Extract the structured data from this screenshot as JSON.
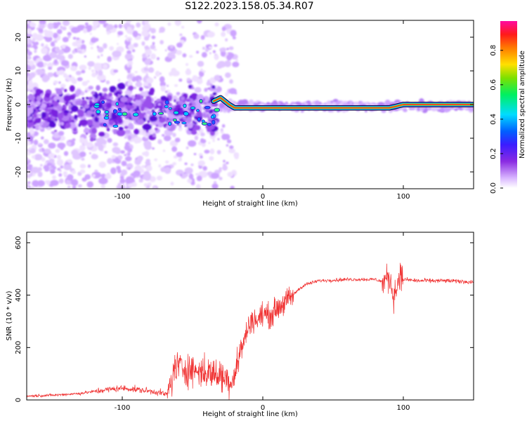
{
  "title": "S122.2023.158.05.34.R07",
  "colors": {
    "snr_line": "#f03030",
    "axis": "#000000",
    "track": "#000000"
  },
  "chart_data": [
    {
      "type": "heatmap",
      "xlabel": "Height of straight line (km)",
      "ylabel": "Frequency (Hz)",
      "xlim": [
        -168,
        150
      ],
      "ylim": [
        -25,
        25
      ],
      "x_ticks": [
        -100,
        0,
        100
      ],
      "y_ticks": [
        -20,
        -10,
        0,
        10,
        20
      ],
      "colorbar": {
        "label": "Normalized spectral amplitude",
        "range": [
          0,
          0.97
        ],
        "ticks": [
          "0.0",
          "0.2",
          "0.4",
          "0.6",
          "0.8"
        ],
        "colormap": "white-violet-blue-cyan-green-yellow-red-magenta"
      },
      "track": {
        "x": [
          -35,
          -30,
          -27,
          -24,
          -20,
          -10,
          0,
          10,
          30,
          60,
          80,
          90,
          100,
          120,
          150
        ],
        "frequency": [
          1,
          2,
          1,
          0,
          -1,
          -1,
          -1,
          -1,
          -1,
          -1,
          -1,
          -1,
          0,
          0,
          0
        ]
      }
    },
    {
      "type": "line",
      "xlabel": "Height of straight line (km)",
      "ylabel": "SNR (10 * v/v)",
      "xlim": [
        -168,
        150
      ],
      "ylim": [
        0,
        640
      ],
      "x_ticks": [
        -100,
        0,
        100
      ],
      "y_ticks": [
        0,
        200,
        400,
        600
      ],
      "series": [
        {
          "x": [
            -168,
            -150,
            -130,
            -110,
            -100,
            -90,
            -75,
            -68,
            -62,
            -55,
            -45,
            -35,
            -28,
            -22,
            -16,
            -12,
            -8,
            -4,
            0,
            5,
            10,
            15,
            20,
            25,
            30,
            40,
            60,
            80,
            86,
            90,
            93,
            95,
            97,
            100,
            110,
            130,
            150
          ],
          "y": [
            15,
            18,
            25,
            40,
            45,
            40,
            30,
            20,
            130,
            120,
            110,
            100,
            90,
            70,
            180,
            250,
            310,
            300,
            330,
            320,
            350,
            370,
            390,
            420,
            440,
            455,
            460,
            460,
            450,
            470,
            400,
            420,
            480,
            460,
            455,
            455,
            450
          ]
        }
      ]
    }
  ]
}
